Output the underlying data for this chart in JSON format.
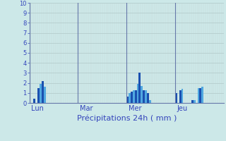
{
  "title": "Précipitations 24h ( mm )",
  "background_color": "#cce8e8",
  "bar_color_dark": "#1a50b0",
  "bar_color_light": "#50a8e0",
  "grid_color_major": "#b0c8c8",
  "grid_color_minor": "#c8d8d8",
  "axis_line_color": "#6678aa",
  "text_color": "#3344bb",
  "ylim": [
    0,
    10
  ],
  "yticks": [
    0,
    1,
    2,
    3,
    4,
    5,
    6,
    7,
    8,
    9,
    10
  ],
  "day_labels": [
    "Lun",
    "Mar",
    "Mer",
    "Jeu"
  ],
  "day_positions": [
    0,
    24,
    48,
    72
  ],
  "values": [
    0,
    0,
    0.4,
    0,
    1.5,
    1.9,
    2.2,
    1.6,
    0,
    0,
    0,
    0,
    0,
    0,
    0,
    0,
    0,
    0,
    0,
    0,
    0,
    0,
    0,
    0,
    0,
    0,
    0,
    0,
    0,
    0,
    0,
    0,
    0,
    0,
    0,
    0,
    0,
    0,
    0,
    0,
    0,
    0,
    0,
    0,
    0,
    0,
    0,
    0,
    0.6,
    1.0,
    1.1,
    1.3,
    1.3,
    1.9,
    3.0,
    1.7,
    1.3,
    1.3,
    1.0,
    0.3,
    0,
    0,
    0,
    0,
    0,
    0,
    0,
    0,
    0,
    0,
    0,
    0,
    1.0,
    0,
    1.3,
    1.4,
    0,
    0,
    0,
    0,
    0.3,
    0.3,
    0,
    1.5,
    1.5,
    1.6,
    0,
    0,
    0,
    0,
    0,
    0,
    0,
    0,
    0,
    0
  ],
  "n_bars": 96
}
